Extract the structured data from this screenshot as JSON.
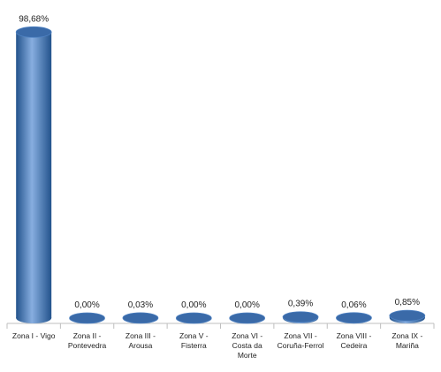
{
  "chart_data": {
    "type": "bar",
    "style": "3d-cylinder",
    "categories": [
      [
        "Zona I - Vigo"
      ],
      [
        "Zona II -",
        "Pontevedra"
      ],
      [
        "Zona III -",
        "Arousa"
      ],
      [
        "Zona V -",
        "Fisterra"
      ],
      [
        "Zona VI -",
        "Costa da",
        "Morte"
      ],
      [
        "Zona VII -",
        "Coruña-Ferrol"
      ],
      [
        "Zona VIII -",
        "Cedeira"
      ],
      [
        "Zona IX -",
        "Mariña"
      ]
    ],
    "values": [
      98.68,
      0.0,
      0.03,
      0.0,
      0.0,
      0.39,
      0.06,
      0.85
    ],
    "data_labels": [
      "98,68%",
      "0,00%",
      "0,03%",
      "0,00%",
      "0,00%",
      "0,39%",
      "0,06%",
      "0,85%"
    ],
    "ylim": [
      0,
      100
    ],
    "grid": false,
    "legend": "none",
    "colors": {
      "bar_dark": "#23538c",
      "bar_mid": "#4f82c2",
      "bar_light": "#87aee0",
      "bar_top": "#3a6aa8",
      "axis": "#bfbfbf",
      "label_text": "#1f1f1f"
    }
  }
}
